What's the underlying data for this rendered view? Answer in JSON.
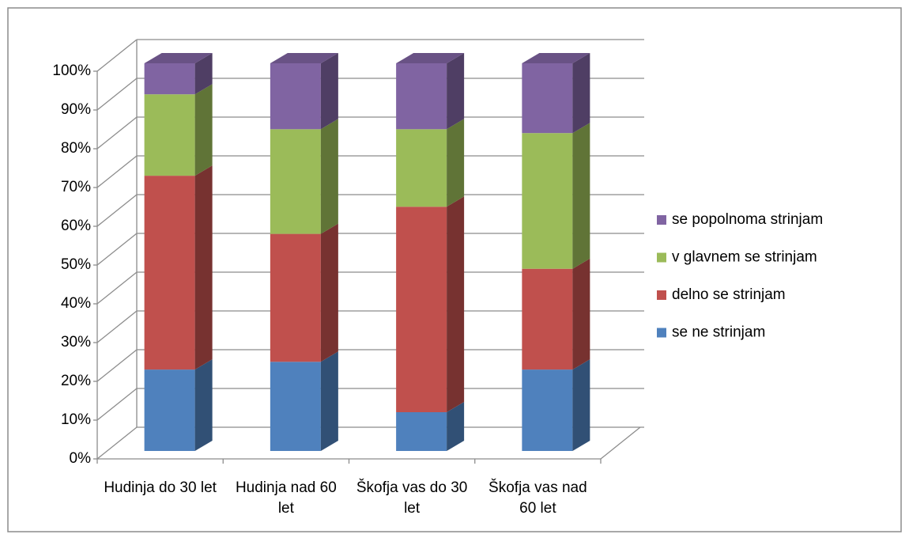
{
  "chart_data": {
    "type": "bar",
    "stacked": true,
    "categories": [
      "Hudinja do 30 let",
      "Hudinja nad 60 let",
      "Škofja vas do 30 let",
      "Škofja vas nad 60 let"
    ],
    "series": [
      {
        "name": "se ne strinjam",
        "color": "#4f81bd",
        "values": [
          21,
          23,
          10,
          21
        ]
      },
      {
        "name": "delno se strinjam",
        "color": "#c0504d",
        "values": [
          50,
          33,
          53,
          26
        ]
      },
      {
        "name": "v glavnem se strinjam",
        "color": "#9bbb59",
        "values": [
          21,
          27,
          20,
          35
        ]
      },
      {
        "name": "se popolnoma strinjam",
        "color": "#8064a2",
        "values": [
          8,
          17,
          17,
          18
        ]
      }
    ],
    "ylim": [
      0,
      100
    ],
    "yticks": [
      {
        "value": 0,
        "label": "0%"
      },
      {
        "value": 10,
        "label": "10%"
      },
      {
        "value": 20,
        "label": "20%"
      },
      {
        "value": 30,
        "label": "30%"
      },
      {
        "value": 40,
        "label": "40%"
      },
      {
        "value": 50,
        "label": "50%"
      },
      {
        "value": 60,
        "label": "60%"
      },
      {
        "value": 70,
        "label": "70%"
      },
      {
        "value": 80,
        "label": "80%"
      },
      {
        "value": 90,
        "label": "90%"
      },
      {
        "value": 100,
        "label": "100%"
      }
    ],
    "grid": true,
    "legend": "right"
  }
}
